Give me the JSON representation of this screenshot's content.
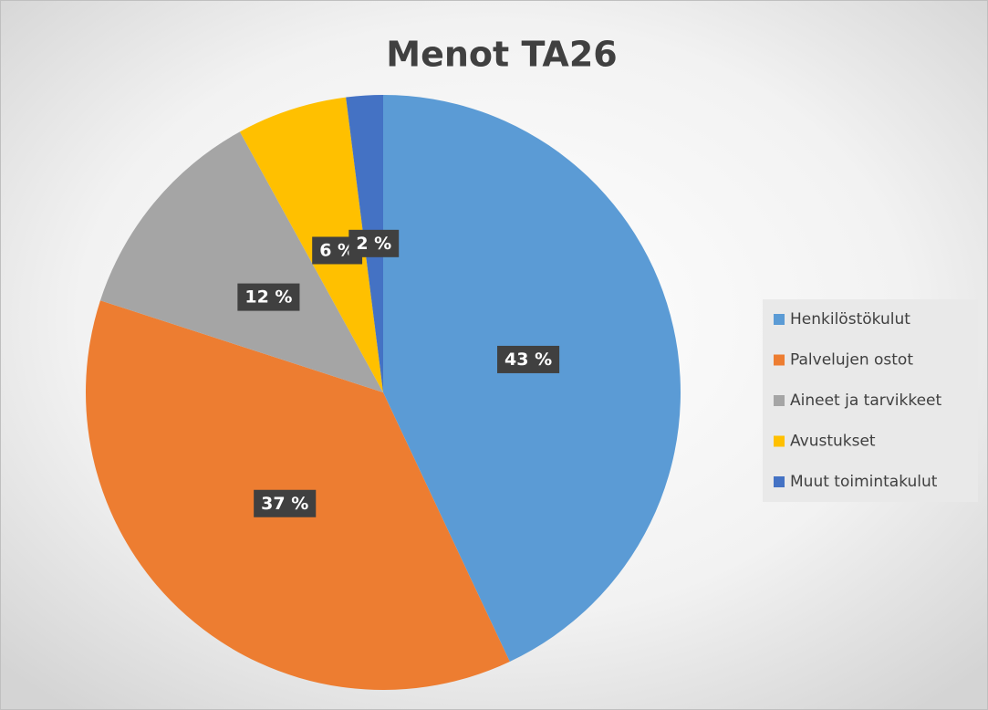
{
  "chart_data": {
    "type": "pie",
    "title": "Menot TA26",
    "categories": [
      "Henkilöstökulut",
      "Palvelujen ostot",
      "Aineet ja tarvikkeet",
      "Avustukset",
      "Muut toimintakulut"
    ],
    "values": [
      43,
      37,
      12,
      6,
      2
    ],
    "value_labels": [
      "43 %",
      "37 %",
      "12 %",
      "6 %",
      "2 %"
    ],
    "colors": [
      "#5b9bd5",
      "#ed7d31",
      "#a5a5a5",
      "#ffc000",
      "#4472c4"
    ],
    "legend": "right"
  }
}
